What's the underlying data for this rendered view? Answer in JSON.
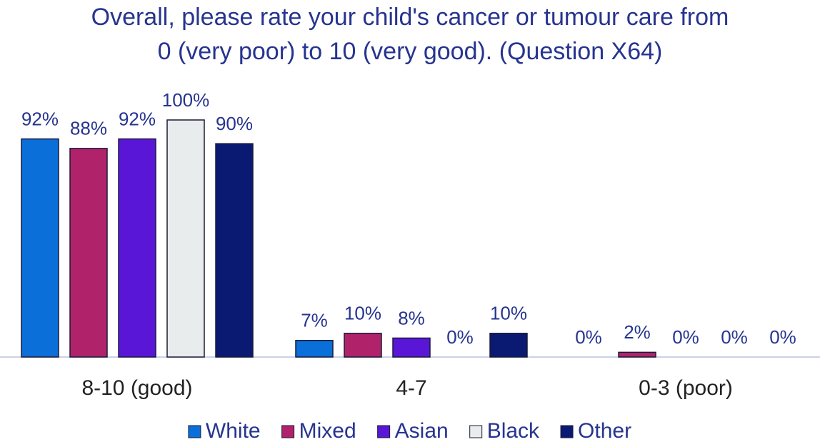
{
  "chart_data": {
    "type": "bar",
    "title": "Overall, please rate your child's cancer or tumour care from 0 (very poor) to 10 (very good). (Question X64)",
    "categories": [
      "8-10 (good)",
      "4-7",
      "0-3 (poor)"
    ],
    "series": [
      {
        "name": "White",
        "color": "#0a6fd8",
        "values": [
          92,
          7,
          0
        ],
        "value_labels": [
          "92%",
          "7%",
          "0%"
        ]
      },
      {
        "name": "Mixed",
        "color": "#b0236a",
        "values": [
          88,
          10,
          2
        ],
        "value_labels": [
          "88%",
          "10%",
          "2%"
        ]
      },
      {
        "name": "Asian",
        "color": "#5a16d6",
        "values": [
          92,
          8,
          0
        ],
        "value_labels": [
          "92%",
          "8%",
          "0%"
        ]
      },
      {
        "name": "Black",
        "color": "#e8ecec",
        "values": [
          100,
          0,
          0
        ],
        "value_labels": [
          "100%",
          "0%",
          "0%"
        ]
      },
      {
        "name": "Other",
        "color": "#0a1a72",
        "values": [
          90,
          10,
          0
        ],
        "value_labels": [
          "90%",
          "10%",
          "0%"
        ]
      }
    ],
    "legend": "bottom"
  }
}
